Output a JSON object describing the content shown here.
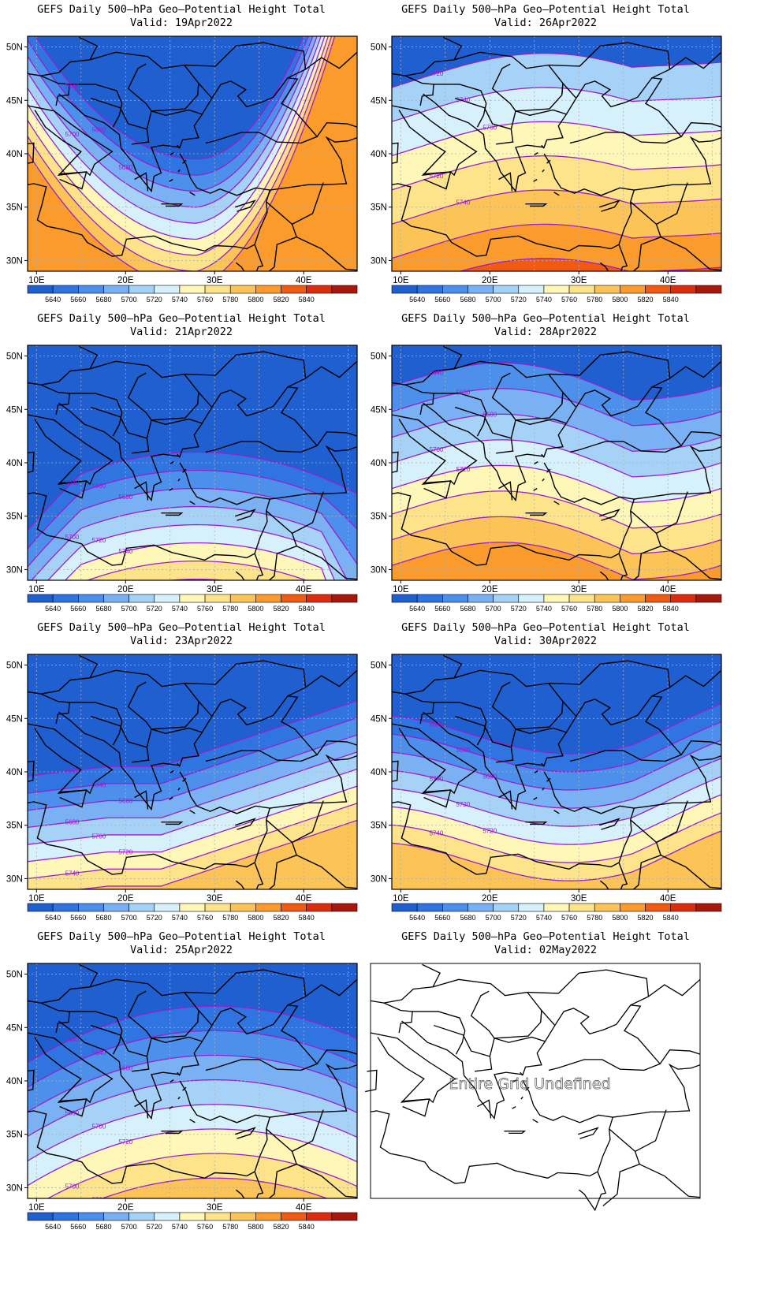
{
  "panels": [
    {
      "id": "p1",
      "title": "GEFS Daily 500–hPa Geo–Potential Height Total",
      "valid": "Valid: 19Apr2022",
      "mode": "a",
      "labels": [
        [
          "5640"
        ],
        [
          "5660"
        ],
        [
          "5680"
        ],
        [
          "5700"
        ]
      ]
    },
    {
      "id": "p2",
      "title": "GEFS Daily 500–hPa Geo–Potential Height Total",
      "valid": "Valid: 26Apr2022",
      "mode": "b",
      "labels": [
        [
          "5720"
        ],
        [
          "5740"
        ],
        [
          "5760"
        ],
        [
          "5720"
        ],
        [
          "5740"
        ]
      ]
    },
    {
      "id": "p3",
      "title": "GEFS Daily 500–hPa Geo–Potential Height Total",
      "valid": "Valid: 21Apr2022",
      "mode": "c",
      "labels": [
        [
          "5640"
        ],
        [
          "5660"
        ],
        [
          "5680"
        ],
        [
          "5700"
        ],
        [
          "5720"
        ],
        [
          "5740"
        ],
        [
          "5760"
        ]
      ]
    },
    {
      "id": "p4",
      "title": "GEFS Daily 500–hPa Geo–Potential Height Total",
      "valid": "Valid: 28Apr2022",
      "mode": "d",
      "labels": [
        [
          "5640"
        ],
        [
          "5660"
        ],
        [
          "5680"
        ],
        [
          "5700"
        ],
        [
          "5720"
        ]
      ]
    },
    {
      "id": "p5",
      "title": "GEFS Daily 500–hPa Geo–Potential Height Total",
      "valid": "Valid: 23Apr2022",
      "mode": "e",
      "labels": [
        [
          "5640"
        ],
        [
          "5640"
        ],
        [
          "5660"
        ],
        [
          "5680"
        ],
        [
          "5700"
        ],
        [
          "5720"
        ],
        [
          "5740"
        ]
      ]
    },
    {
      "id": "p6",
      "title": "GEFS Daily 500–hPa Geo–Potential Height Total",
      "valid": "Valid: 30Apr2022",
      "mode": "f",
      "labels": [
        [
          "5640"
        ],
        [
          "5660"
        ],
        [
          "5680"
        ],
        [
          "5700"
        ],
        [
          "5720"
        ],
        [
          "5720"
        ],
        [
          "5740"
        ]
      ]
    },
    {
      "id": "p7",
      "title": "GEFS Daily 500–hPa Geo–Potential Height Total",
      "valid": "Valid: 25Apr2022",
      "mode": "g",
      "labels": [
        [
          "5640"
        ],
        [
          "5640"
        ],
        [
          "5660"
        ],
        [
          "5680"
        ],
        [
          "5700"
        ],
        [
          "5720"
        ],
        [
          "5700"
        ],
        [
          "5720"
        ],
        [
          "5740"
        ],
        [
          "5760"
        ],
        [
          "5740"
        ]
      ]
    },
    {
      "id": "p8",
      "title": "GEFS Daily 500–hPa Geo–Potential Height Total",
      "valid": "Valid: 02May2022",
      "mode": "empty",
      "message": "Entire Grid Undefined"
    }
  ],
  "x_ticks": [
    "10E",
    "20E",
    "30E",
    "40E"
  ],
  "y_ticks": [
    "50N",
    "45N",
    "40N",
    "35N",
    "30N"
  ],
  "colorbar": {
    "labels": [
      "5640",
      "5660",
      "5680",
      "5700",
      "5720",
      "5740",
      "5760",
      "5780",
      "5800",
      "5820",
      "5840"
    ],
    "colors": [
      "#1f5fd0",
      "#2f74e0",
      "#4c90ec",
      "#79b1f4",
      "#a6d2f8",
      "#d6f1fb",
      "#fff7b8",
      "#fde48a",
      "#fcc357",
      "#fb9b2b",
      "#f05a12",
      "#dc2c0e",
      "#a8170c"
    ]
  },
  "colors": {
    "contour": "#9a1ecf",
    "label": "#9a1ecf",
    "border": "#000000",
    "grid": "#b0b0b0"
  }
}
